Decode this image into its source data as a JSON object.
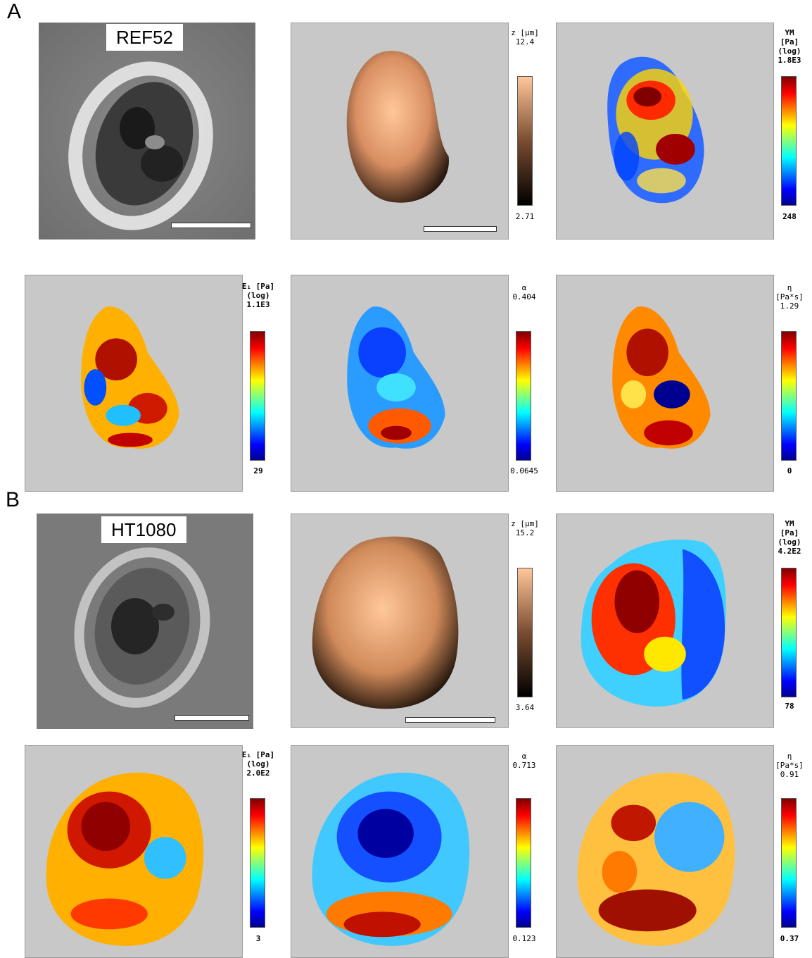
{
  "figure": {
    "panels": [
      {
        "letter": "A",
        "cell_line": "REF52",
        "maps": {
          "height": {
            "quantity": "z [μm]",
            "max": "12.4",
            "min": "2.71",
            "colormap": "copper"
          },
          "young_modulus": {
            "line1": "YM",
            "line2": "[Pa]",
            "line3": "(log)",
            "max": "1.8E3",
            "min": "248",
            "colormap": "jet"
          },
          "e1": {
            "line1": "E₁ [Pa]",
            "line2": "(log)",
            "max": "1.1E3",
            "min": "29",
            "colormap": "jet"
          },
          "alpha": {
            "line1": "α",
            "max": "0.404",
            "min": "0.0645",
            "colormap": "jet"
          },
          "eta": {
            "line1": "η",
            "line2": "[Pa*s]",
            "max": "1.29",
            "min": "0",
            "colormap": "jet"
          }
        }
      },
      {
        "letter": "B",
        "cell_line": "HT1080",
        "maps": {
          "height": {
            "quantity": "z [μm]",
            "max": "15.2",
            "min": "3.64",
            "colormap": "copper"
          },
          "young_modulus": {
            "line1": "YM",
            "line2": "[Pa]",
            "line3": "(log)",
            "max": "4.2E2",
            "min": "78",
            "colormap": "jet"
          },
          "e1": {
            "line1": "E₁ [Pa]",
            "line2": "(log)",
            "max": "2.0E2",
            "min": "3",
            "colormap": "jet"
          },
          "alpha": {
            "line1": "α",
            "max": "0.713",
            "min": "0.123",
            "colormap": "jet"
          },
          "eta": {
            "line1": "η",
            "line2": "[Pa*s]",
            "max": "0.91",
            "min": "0.37",
            "colormap": "jet"
          }
        }
      }
    ],
    "colors": {
      "map_background": "#c8c8c8",
      "jet_dark_red": "#800000",
      "jet_red": "#ff0000",
      "jet_yellow": "#ffff00",
      "jet_cyan": "#00ffff",
      "jet_blue": "#0000ff",
      "copper_light": "#ffc79a",
      "copper_dark": "#000000"
    }
  }
}
